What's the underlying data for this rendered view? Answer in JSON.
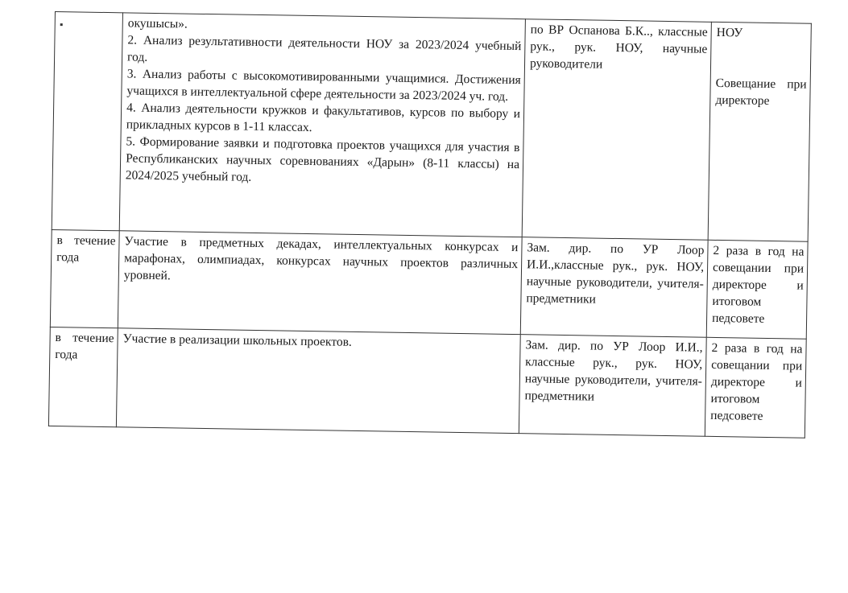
{
  "rows": [
    {
      "period": "",
      "activities": [
        "окушысы».",
        "2. Анализ результативности деятельности НОУ за 2023/2024 учебный год.",
        "3. Анализ работы с высокомотивированными учащимися. Достижения учащихся в интеллектуальной сфере деятельности за 2023/2024 уч. год.",
        "4. Анализ деятельности кружков и факультативов, курсов по выбору и прикладных курсов в 1-11 классах.",
        "5. Формирование заявки и подготовка проектов учащихся для участия в Республиканских научных соревнованиях «Дарын» (8-11 классы) на 2024/2025 учебный год."
      ],
      "responsible": "по ВР Оспанова Б.К.., классные рук., рук. НОУ, научные руководители",
      "form": [
        "НОУ",
        "Совещание при директоре"
      ]
    },
    {
      "period": "в течение года",
      "activity": "Участие в предметных декадах, интеллектуальных конкурсах и марафонах, олимпиадах, конкурсах научных проектов различных уровней.",
      "responsible": "Зам. дир. по УР Лоор И.И.,классные рук., рук. НОУ, научные руководители, учителя-предметники",
      "form": "2 раза в год на совещании при директоре и итоговом педсовете"
    },
    {
      "period": "в течение года",
      "activity": "Участие в реализации школьных проектов.",
      "responsible": "Зам. дир. по УР Лоор И.И., классные рук., рук. НОУ, научные руководители, учителя-предметники",
      "form": "2 раза в год на совещании при директоре и итоговом педсовете"
    }
  ]
}
